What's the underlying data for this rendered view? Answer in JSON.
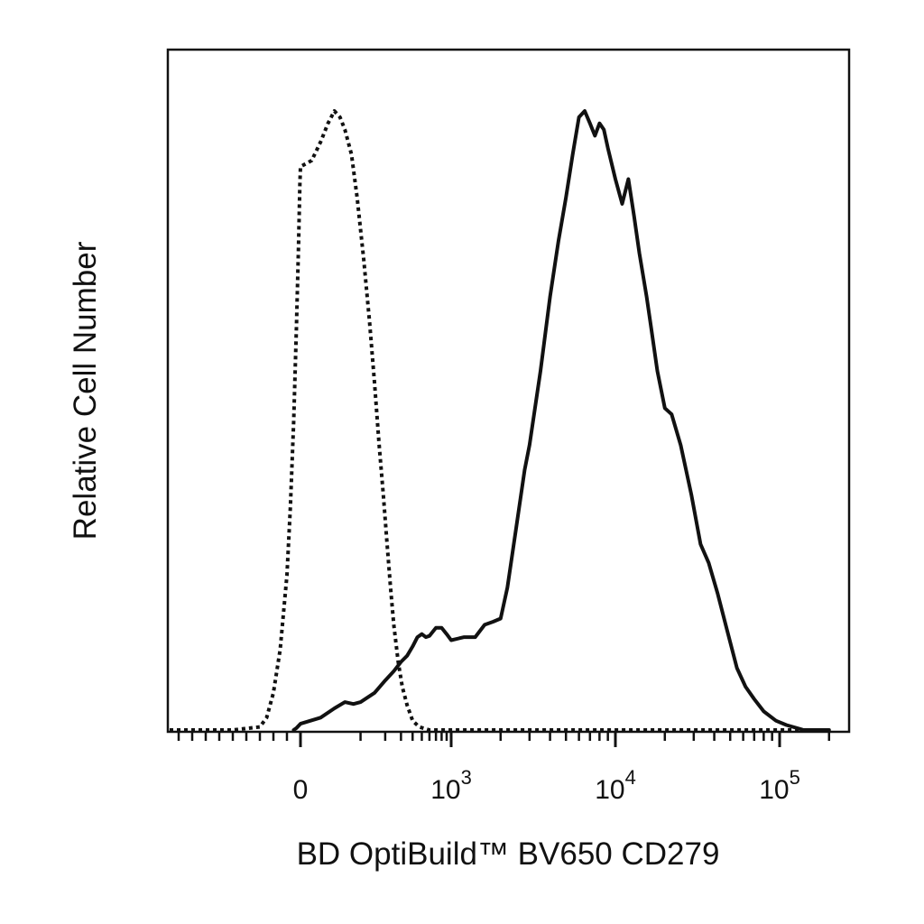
{
  "chart_data": {
    "type": "line",
    "title": "",
    "xlabel": "BD OptiBuild™ BV650 CD279",
    "ylabel": "Relative Cell Number",
    "x_scale": "biexponential",
    "xlim": [
      -1000,
      200000
    ],
    "ylim": [
      0,
      100
    ],
    "grid": false,
    "legend": "none",
    "x_ticks": [
      {
        "value": 0,
        "base": "0",
        "exp": ""
      },
      {
        "value": 1000,
        "base": "10",
        "exp": "3"
      },
      {
        "value": 10000,
        "base": "10",
        "exp": "4"
      },
      {
        "value": 100000,
        "base": "10",
        "exp": "5"
      }
    ],
    "series": [
      {
        "style": "dotted",
        "color": "#111111",
        "points": [
          [
            -1000,
            0
          ],
          [
            -500,
            0
          ],
          [
            -300,
            0.5
          ],
          [
            -250,
            2
          ],
          [
            -200,
            6
          ],
          [
            -150,
            13
          ],
          [
            -100,
            25
          ],
          [
            -75,
            36
          ],
          [
            -50,
            50
          ],
          [
            -30,
            65
          ],
          [
            -15,
            78
          ],
          [
            -5,
            88
          ],
          [
            0,
            91
          ],
          [
            10,
            92
          ],
          [
            20,
            95
          ],
          [
            30,
            98
          ],
          [
            40,
            100
          ],
          [
            50,
            99
          ],
          [
            60,
            97
          ],
          [
            75,
            93
          ],
          [
            90,
            86
          ],
          [
            110,
            76
          ],
          [
            130,
            66
          ],
          [
            150,
            56
          ],
          [
            170,
            46
          ],
          [
            190,
            38
          ],
          [
            210,
            30
          ],
          [
            230,
            23
          ],
          [
            250,
            17
          ],
          [
            280,
            11
          ],
          [
            310,
            7
          ],
          [
            350,
            4
          ],
          [
            400,
            1.5
          ],
          [
            470,
            0.5
          ],
          [
            600,
            0
          ],
          [
            1000,
            0
          ],
          [
            10000,
            0
          ],
          [
            100000,
            0
          ],
          [
            200000,
            0
          ]
        ]
      },
      {
        "style": "solid",
        "color": "#111111",
        "points": [
          [
            -50,
            0
          ],
          [
            -30,
            0.3
          ],
          [
            0,
            1
          ],
          [
            20,
            2
          ],
          [
            40,
            3.5
          ],
          [
            60,
            4.5
          ],
          [
            80,
            4.2
          ],
          [
            100,
            4.5
          ],
          [
            150,
            6
          ],
          [
            200,
            8
          ],
          [
            250,
            9.5
          ],
          [
            300,
            11
          ],
          [
            350,
            12
          ],
          [
            400,
            13.5
          ],
          [
            450,
            15
          ],
          [
            500,
            15.5
          ],
          [
            550,
            15
          ],
          [
            600,
            15.2
          ],
          [
            700,
            16.5
          ],
          [
            800,
            16.5
          ],
          [
            900,
            15.5
          ],
          [
            1000,
            14.5
          ],
          [
            1200,
            15
          ],
          [
            1400,
            15
          ],
          [
            1600,
            17
          ],
          [
            1800,
            17.5
          ],
          [
            2000,
            18
          ],
          [
            2200,
            23
          ],
          [
            2500,
            33
          ],
          [
            2800,
            42
          ],
          [
            3000,
            46
          ],
          [
            3500,
            58
          ],
          [
            4000,
            70
          ],
          [
            4500,
            79
          ],
          [
            5000,
            86
          ],
          [
            5500,
            93
          ],
          [
            6000,
            99
          ],
          [
            6500,
            100
          ],
          [
            7000,
            98
          ],
          [
            7500,
            96
          ],
          [
            8000,
            98
          ],
          [
            8500,
            97
          ],
          [
            9000,
            94
          ],
          [
            10000,
            89
          ],
          [
            11000,
            85
          ],
          [
            12000,
            89
          ],
          [
            13000,
            83
          ],
          [
            14000,
            77
          ],
          [
            15500,
            70
          ],
          [
            16500,
            65
          ],
          [
            18000,
            58
          ],
          [
            20000,
            52
          ],
          [
            22000,
            51
          ],
          [
            25000,
            46
          ],
          [
            29000,
            38
          ],
          [
            33000,
            30
          ],
          [
            37000,
            27
          ],
          [
            42000,
            22
          ],
          [
            48000,
            16
          ],
          [
            55000,
            10
          ],
          [
            62000,
            7
          ],
          [
            70000,
            5
          ],
          [
            80000,
            3
          ],
          [
            95000,
            1.5
          ],
          [
            110000,
            0.8
          ],
          [
            140000,
            0
          ],
          [
            200000,
            0
          ]
        ]
      }
    ]
  }
}
